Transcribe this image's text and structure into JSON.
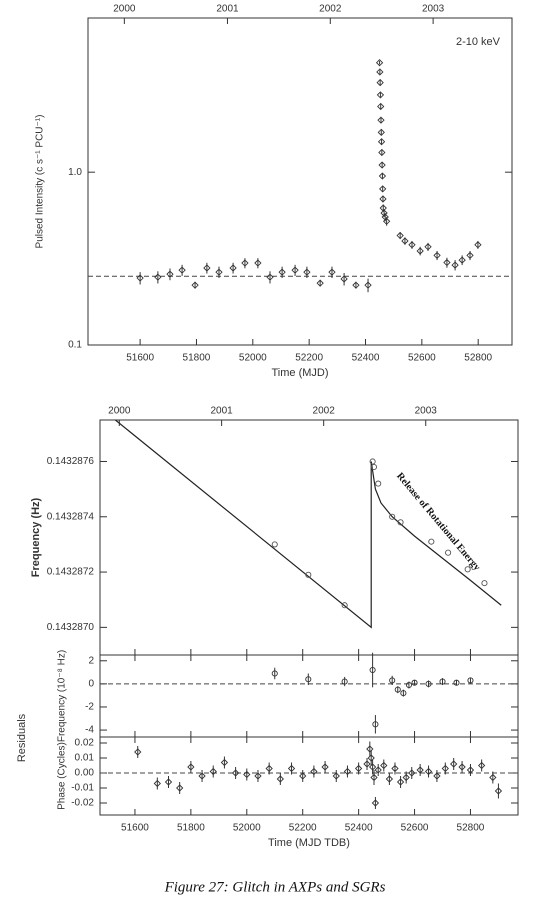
{
  "chart_data": [
    {
      "type": "scatter",
      "y_scale": "log",
      "annotation": "2-10 keV",
      "xlabel": "Time (MJD)",
      "ylabel": "Pulsed Intensity (c s⁻¹ PCU⁻¹)",
      "xlim": [
        51415,
        52920
      ],
      "ylim": [
        0.1,
        7.8
      ],
      "xticks": [
        51600,
        51800,
        52000,
        52200,
        52400,
        52600,
        52800
      ],
      "x2ticks": [
        {
          "value": 51544,
          "label": "2000"
        },
        {
          "value": 51910,
          "label": "2001"
        },
        {
          "value": 52275,
          "label": "2002"
        },
        {
          "value": 52640,
          "label": "2003"
        }
      ],
      "yticks": [
        0.1,
        {
          "value": 1,
          "label": "1.0"
        }
      ],
      "reference_level": 0.25,
      "series": [
        {
          "color": "#333333",
          "marker": "diamond",
          "x": [
            51600,
            51663,
            51706,
            51749,
            51795,
            51837,
            51880,
            51930,
            51972,
            52018,
            52061,
            52104,
            52150,
            52192,
            52239,
            52281,
            52324,
            52366,
            52409,
            52450,
            52451,
            52452,
            52453,
            52454,
            52455,
            52456,
            52457,
            52458,
            52459,
            52460,
            52461,
            52462,
            52463,
            52466,
            52470,
            52475,
            52523,
            52540,
            52565,
            52594,
            52622,
            52654,
            52689,
            52718,
            52743,
            52771,
            52799
          ],
          "values": [
            0.244,
            0.247,
            0.257,
            0.271,
            0.222,
            0.279,
            0.264,
            0.279,
            0.298,
            0.298,
            0.247,
            0.264,
            0.271,
            0.264,
            0.228,
            0.264,
            0.241,
            0.222,
            0.222,
            4.3,
            3.8,
            3.3,
            2.8,
            2.4,
            2.0,
            1.7,
            1.5,
            1.3,
            1.1,
            0.95,
            0.8,
            0.7,
            0.62,
            0.58,
            0.55,
            0.52,
            0.43,
            0.4,
            0.38,
            0.35,
            0.37,
            0.33,
            0.3,
            0.29,
            0.31,
            0.33,
            0.38
          ],
          "errors": [
            0.02,
            0.02,
            0.02,
            0.02,
            0.01,
            0.02,
            0.02,
            0.02,
            0.02,
            0.02,
            0.02,
            0.02,
            0.02,
            0.02,
            0.01,
            0.02,
            0.02,
            0.01,
            0.02,
            0.1,
            0.1,
            0.1,
            0.08,
            0.08,
            0.06,
            0.05,
            0.05,
            0.04,
            0.04,
            0.03,
            0.03,
            0.03,
            0.03,
            0.03,
            0.03,
            0.03,
            0.02,
            0.02,
            0.02,
            0.02,
            0.02,
            0.02,
            0.02,
            0.02,
            0.02,
            0.02,
            0.02
          ]
        }
      ]
    },
    {
      "type": "line",
      "annotation": "Release of Rotational Energy",
      "ylabel": "Frequency (Hz)",
      "xlim": [
        51475,
        52970
      ],
      "ylim": [
        0.1432869,
        0.14328775
      ],
      "x2ticks": [
        {
          "value": 51544,
          "label": "2000"
        },
        {
          "value": 51910,
          "label": "2001"
        },
        {
          "value": 52275,
          "label": "2002"
        },
        {
          "value": 52640,
          "label": "2003"
        }
      ],
      "yticks": [
        {
          "value": 0.143287,
          "label": "0.1432870"
        },
        0.1432872,
        0.1432874,
        0.1432876
      ],
      "series": [
        {
          "color": "#222222",
          "style": "line",
          "x": [
            51530,
            52445,
            52445,
            52460,
            52480,
            52520,
            52600,
            52700,
            52800,
            52910
          ],
          "values": [
            0.14328775,
            0.143287,
            0.1432876,
            0.1432875,
            0.14328745,
            0.1432874,
            0.14328733,
            0.14328725,
            0.14328717,
            0.14328708
          ]
        },
        {
          "color": "#555555",
          "marker": "circle",
          "x": [
            52100,
            52220,
            52350,
            52450,
            52455,
            52470,
            52520,
            52550,
            52660,
            52720,
            52790,
            52850
          ],
          "values": [
            0.1432873,
            0.14328719,
            0.14328708,
            0.1432876,
            0.14328758,
            0.14328752,
            0.1432874,
            0.14328738,
            0.14328731,
            0.14328727,
            0.14328721,
            0.14328716
          ]
        }
      ]
    },
    {
      "type": "scatter",
      "ylabel": "Frequency (10⁻⁸ Hz)",
      "group_label": "Residuals",
      "xlim": [
        51475,
        52970
      ],
      "ylim": [
        -4.6,
        2.5
      ],
      "yticks": [
        -4,
        -2,
        0,
        2
      ],
      "reference_level": 0,
      "series": [
        {
          "color": "#333333",
          "marker": "circle",
          "x": [
            52100,
            52220,
            52350,
            52450,
            52460,
            52520,
            52540,
            52560,
            52580,
            52600,
            52650,
            52700,
            52750,
            52800
          ],
          "values": [
            0.9,
            0.4,
            0.2,
            1.2,
            -3.5,
            0.3,
            -0.5,
            -0.8,
            -0.1,
            0.1,
            0.0,
            0.2,
            0.1,
            0.3
          ],
          "errors": [
            0.5,
            0.5,
            0.4,
            1.5,
            0.8,
            0.4,
            0.3,
            0.3,
            0.3,
            0.2,
            0.3,
            0.3,
            0.2,
            0.2
          ]
        }
      ]
    },
    {
      "type": "scatter",
      "ylabel": "Phase (Cycles)",
      "xlabel": "Time (MJD TDB)",
      "xlim": [
        51475,
        52970
      ],
      "ylim": [
        -0.028,
        0.024
      ],
      "xticks": [
        51600,
        51800,
        52000,
        52200,
        52400,
        52600,
        52800
      ],
      "yticks": [
        -0.02,
        -0.01,
        {
          "value": 0,
          "label": "0.00"
        },
        0.01,
        0.02
      ],
      "reference_level": 0,
      "series": [
        {
          "color": "#333333",
          "marker": "diamond",
          "x": [
            51610,
            51680,
            51720,
            51760,
            51800,
            51840,
            51880,
            51920,
            51960,
            52000,
            52040,
            52080,
            52120,
            52160,
            52200,
            52240,
            52280,
            52320,
            52360,
            52400,
            52430,
            52440,
            52445,
            52450,
            52455,
            52460,
            52470,
            52490,
            52510,
            52530,
            52550,
            52570,
            52590,
            52620,
            52650,
            52680,
            52710,
            52740,
            52770,
            52800,
            52840,
            52880,
            52900
          ],
          "values": [
            0.014,
            -0.007,
            -0.006,
            -0.01,
            0.004,
            -0.002,
            0.001,
            0.007,
            0.0,
            -0.001,
            -0.002,
            0.003,
            -0.004,
            0.003,
            -0.002,
            0.001,
            0.004,
            -0.002,
            0.001,
            0.003,
            0.006,
            0.016,
            0.01,
            0.004,
            -0.003,
            -0.02,
            0.002,
            0.005,
            -0.004,
            0.003,
            -0.006,
            -0.003,
            0.0,
            0.002,
            0.001,
            -0.002,
            0.003,
            0.006,
            0.004,
            0.002,
            0.005,
            -0.003,
            -0.012
          ],
          "errors": [
            0.004,
            0.004,
            0.004,
            0.004,
            0.004,
            0.004,
            0.004,
            0.004,
            0.004,
            0.004,
            0.004,
            0.004,
            0.004,
            0.004,
            0.004,
            0.004,
            0.004,
            0.004,
            0.004,
            0.004,
            0.004,
            0.005,
            0.005,
            0.005,
            0.005,
            0.004,
            0.004,
            0.004,
            0.004,
            0.004,
            0.004,
            0.004,
            0.004,
            0.004,
            0.004,
            0.004,
            0.004,
            0.004,
            0.004,
            0.004,
            0.004,
            0.004,
            0.005
          ]
        }
      ]
    }
  ],
  "caption": "Figure 27: Glitch in AXPs and SGRs"
}
